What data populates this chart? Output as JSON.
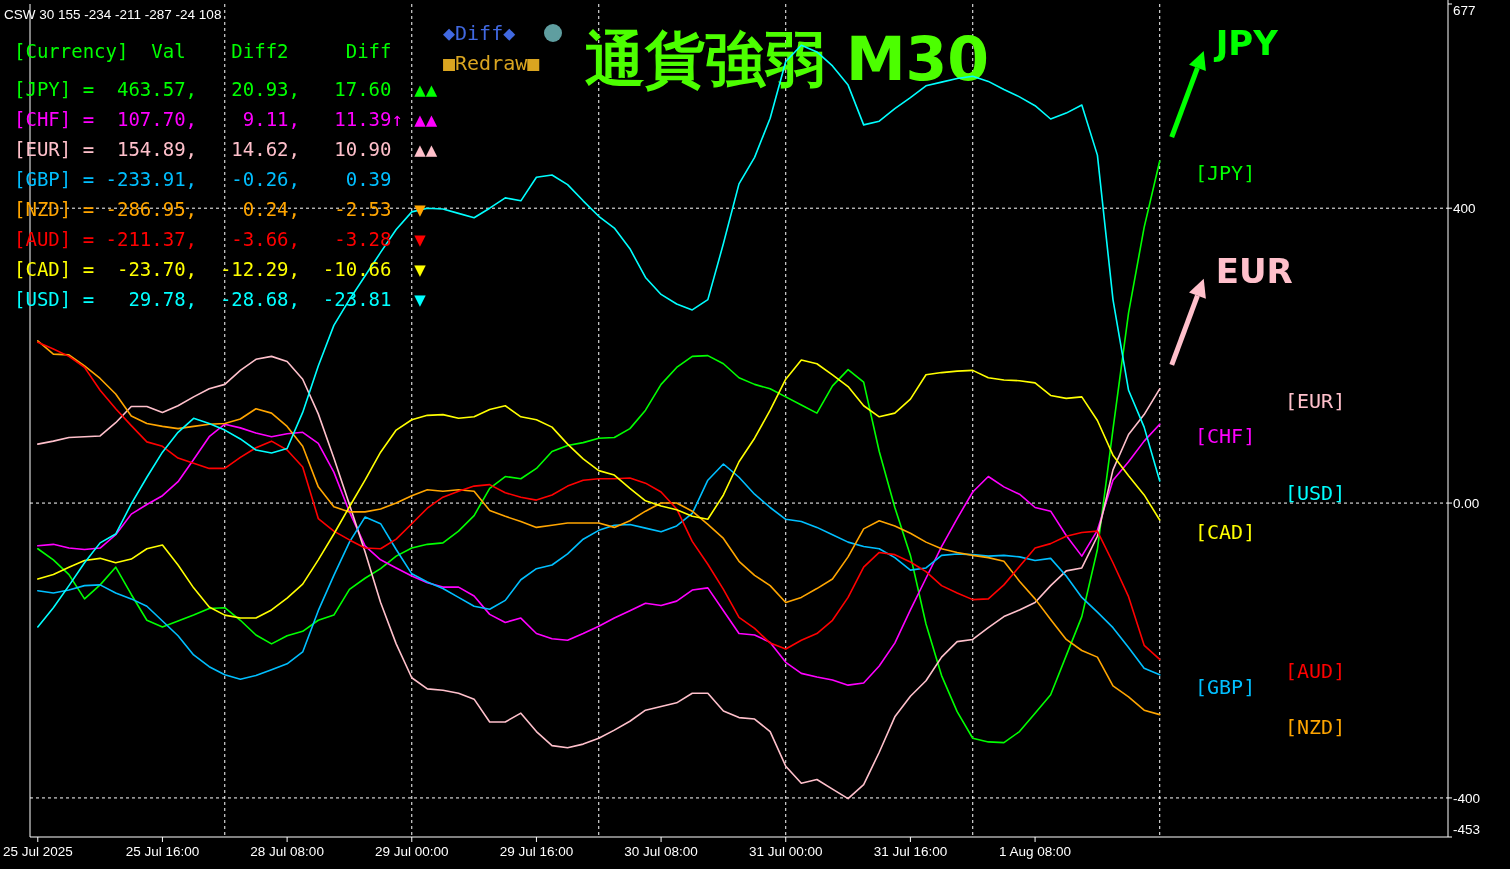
{
  "chart_data": {
    "type": "line",
    "title": "通貨強弱 M30",
    "annotations": [
      "CSW 30 155 -234 -211 -287 -24 108",
      "[Currency]  Val    Diff2     Diff",
      "[JPY] =  463.57,   20.93,   17.60  ▲▲",
      "[CHF] =  107.70,    9.11,   11.39↑ ▲▲",
      "[EUR] =  154.89,   14.62,   10.90  ▲▲",
      "[GBP] = -233.91,   -0.26,    0.39",
      "[NZD] = -286.95,    0.24,   -2.53  ▼",
      "[AUD] = -211.37,   -3.66,   -3.28  ▼",
      "[CAD] =  -23.70,  -12.29,  -10.66  ▼",
      "[USD] =   29.78,  -28.68,  -23.81  ▼",
      "◆Diff◆",
      "■Redraw■",
      "JPY",
      "EUR"
    ],
    "categories": [
      "25 Jul 2025",
      null,
      null,
      null,
      null,
      null,
      null,
      null,
      "25 Jul 16:00",
      null,
      null,
      null,
      null,
      null,
      null,
      null,
      "28 Jul 08:00",
      null,
      null,
      null,
      null,
      null,
      null,
      null,
      "29 Jul 00:00",
      null,
      null,
      null,
      null,
      null,
      null,
      null,
      "29 Jul 16:00",
      null,
      null,
      null,
      null,
      null,
      null,
      null,
      "30 Jul 08:00",
      null,
      null,
      null,
      null,
      null,
      null,
      null,
      "31 Jul 00:00",
      null,
      null,
      null,
      null,
      null,
      null,
      null,
      "31 Jul 16:00",
      null,
      null,
      null,
      null,
      null,
      null,
      null,
      "1 Aug 08:00",
      null,
      null,
      null,
      null,
      null,
      null,
      null,
      null,
      null,
      null,
      null,
      null,
      null,
      null,
      null,
      null,
      null,
      null,
      null,
      null,
      null,
      null,
      null,
      null,
      null,
      null
    ],
    "ylim": [
      -453,
      677
    ],
    "yticks": [
      677,
      400,
      {
        "value": 0,
        "label": "0.00"
      },
      -400,
      -453
    ],
    "grid": true,
    "series": [
      {
        "name": "[JPY]",
        "color": "#00ff00",
        "values": [
          -62,
          -77,
          -97,
          -130,
          -111,
          -87,
          -124,
          -159,
          -168,
          -160,
          -152,
          -143,
          -142,
          -159,
          -179,
          -191,
          -180,
          -174,
          -159,
          -152,
          -117,
          -102,
          -89,
          -72,
          -61,
          -56,
          -54,
          -38,
          -17,
          20,
          36,
          33,
          47,
          70,
          78,
          82,
          88,
          89,
          101,
          126,
          161,
          184,
          199,
          200,
          189,
          170,
          161,
          155,
          144,
          133,
          122,
          159,
          181,
          164,
          70,
          -6,
          -71,
          -164,
          -234,
          -283,
          -319,
          -324,
          -325,
          -310,
          -285,
          -260,
          -207,
          -154,
          -63,
          100,
          258,
          374,
          464,
          null,
          null,
          null,
          null,
          null,
          null,
          null,
          null,
          null,
          null,
          null,
          null,
          null,
          null,
          null,
          null,
          null,
          null
        ]
      },
      {
        "name": "[CHF]",
        "color": "#ff00ff",
        "values": [
          -58,
          -56,
          -61,
          -63,
          -61,
          -43,
          -15,
          -2,
          10,
          29,
          59,
          90,
          107,
          102,
          95,
          90,
          94,
          96,
          81,
          42,
          -12,
          -58,
          -77,
          -88,
          -99,
          -108,
          -114,
          -114,
          -126,
          -151,
          -162,
          -156,
          -177,
          -184,
          -186,
          -177,
          -167,
          -156,
          -146,
          -136,
          -139,
          -133,
          -118,
          -115,
          -146,
          -177,
          -179,
          -189,
          -216,
          -231,
          -236,
          -240,
          -247,
          -244,
          -221,
          -190,
          -145,
          -102,
          -59,
          -21,
          15,
          36,
          22,
          12,
          -6,
          -11,
          -44,
          -72,
          -37,
          31,
          56,
          84,
          107,
          null,
          null,
          null,
          null,
          null,
          null,
          null,
          null,
          null,
          null,
          null,
          null,
          null,
          null,
          null,
          null,
          null,
          null
        ]
      },
      {
        "name": "[EUR]",
        "color": "#ffc0cb",
        "values": [
          80,
          84,
          89,
          90,
          91,
          109,
          131,
          131,
          123,
          132,
          144,
          155,
          161,
          180,
          195,
          199,
          192,
          168,
          121,
          61,
          -2,
          -66,
          -135,
          -191,
          -237,
          -252,
          -254,
          -258,
          -266,
          -297,
          -297,
          -285,
          -310,
          -329,
          -332,
          -327,
          -319,
          -308,
          -296,
          -281,
          -276,
          -271,
          -258,
          -258,
          -282,
          -291,
          -293,
          -310,
          -357,
          -380,
          -375,
          -388,
          -401,
          -382,
          -338,
          -290,
          -262,
          -241,
          -209,
          -188,
          -185,
          -169,
          -154,
          -145,
          -135,
          -112,
          -92,
          -88,
          -45,
          45,
          93,
          120,
          155,
          null,
          null,
          null,
          null,
          null,
          null,
          null,
          null,
          null,
          null,
          null,
          null,
          null,
          null,
          null,
          null,
          null,
          null
        ]
      },
      {
        "name": "[GBP]",
        "color": "#00bfff",
        "values": [
          -119,
          -122,
          -118,
          -112,
          -111,
          -122,
          -130,
          -140,
          -160,
          -180,
          -206,
          -222,
          -233,
          -239,
          -234,
          -226,
          -218,
          -202,
          -146,
          -98,
          -53,
          -19,
          -28,
          -63,
          -96,
          -107,
          -116,
          -128,
          -140,
          -144,
          -132,
          -104,
          -89,
          -84,
          -69,
          -49,
          -37,
          -30,
          -29,
          -34,
          -39,
          -31,
          -14,
          31,
          53,
          35,
          12,
          -6,
          -22,
          -25,
          -33,
          -43,
          -53,
          -59,
          -62,
          -74,
          -91,
          -88,
          -71,
          -69,
          -70,
          -72,
          -71,
          -73,
          -78,
          -75,
          -99,
          -128,
          -148,
          -169,
          -196,
          -224,
          -233,
          null,
          null,
          null,
          null,
          null,
          null,
          null,
          null,
          null,
          null,
          null,
          null,
          null,
          null,
          null,
          null,
          null,
          null
        ]
      },
      {
        "name": "[NZD]",
        "color": "#ffa500",
        "values": [
          220,
          202,
          201,
          186,
          169,
          148,
          118,
          108,
          104,
          101,
          104,
          107,
          108,
          114,
          128,
          122,
          104,
          77,
          22,
          -5,
          -12,
          -12,
          -8,
          0,
          10,
          18,
          16,
          18,
          16,
          -10,
          -18,
          -25,
          -33,
          -30,
          -27,
          -27,
          -27,
          -33,
          -24,
          -11,
          0,
          0,
          -11,
          -29,
          -48,
          -79,
          -98,
          -112,
          -135,
          -128,
          -116,
          -103,
          -73,
          -35,
          -24,
          -31,
          -41,
          -53,
          -62,
          -67,
          -71,
          -74,
          -79,
          -106,
          -130,
          -158,
          -185,
          -200,
          -209,
          -248,
          -263,
          -281,
          -287,
          null,
          null,
          null,
          null,
          null,
          null,
          null,
          null,
          null,
          null,
          null,
          null,
          null,
          null,
          null,
          null,
          null,
          null
        ]
      },
      {
        "name": "[AUD]",
        "color": "#ff0000",
        "values": [
          218,
          209,
          199,
          184,
          153,
          128,
          105,
          83,
          77,
          61,
          54,
          47,
          47,
          62,
          75,
          84,
          72,
          49,
          -21,
          -38,
          -50,
          -61,
          -62,
          -49,
          -28,
          -7,
          8,
          16,
          23,
          25,
          14,
          8,
          4,
          11,
          23,
          31,
          33,
          33,
          34,
          27,
          15,
          -8,
          -52,
          -83,
          -117,
          -155,
          -170,
          -190,
          -198,
          -186,
          -177,
          -159,
          -128,
          -87,
          -67,
          -70,
          -80,
          -93,
          -112,
          -122,
          -131,
          -130,
          -111,
          -86,
          -61,
          -55,
          -45,
          -40,
          -38,
          -81,
          -127,
          -193,
          -212,
          null,
          null,
          null,
          null,
          null,
          null,
          null,
          null,
          null,
          null,
          null,
          null,
          null,
          null,
          null,
          null,
          null,
          null
        ]
      },
      {
        "name": "[CAD]",
        "color": "#ffff00",
        "values": [
          -103,
          -97,
          -87,
          -78,
          -75,
          -81,
          -76,
          -62,
          -57,
          -84,
          -115,
          -141,
          -152,
          -156,
          -156,
          -145,
          -129,
          -110,
          -77,
          -42,
          -5,
          31,
          69,
          99,
          113,
          119,
          120,
          115,
          117,
          127,
          132,
          117,
          113,
          103,
          80,
          60,
          44,
          38,
          20,
          3,
          -4,
          -9,
          -18,
          -22,
          11,
          56,
          88,
          126,
          168,
          194,
          189,
          174,
          158,
          132,
          117,
          122,
          141,
          174,
          177,
          179,
          180,
          170,
          167,
          166,
          163,
          146,
          142,
          144,
          112,
          65,
          37,
          11,
          -23,
          null,
          null,
          null,
          null,
          null,
          null,
          null,
          null,
          null,
          null,
          null,
          null,
          null,
          null,
          null,
          null,
          null,
          null
        ]
      },
      {
        "name": "[USD]",
        "color": "#00ffff",
        "values": [
          -168,
          -142,
          -112,
          -81,
          -54,
          -42,
          -1,
          35,
          69,
          96,
          115,
          108,
          99,
          87,
          72,
          68,
          74,
          123,
          186,
          241,
          276,
          308,
          340,
          371,
          395,
          400,
          399,
          393,
          387,
          400,
          414,
          410,
          442,
          445,
          432,
          410,
          389,
          373,
          345,
          306,
          283,
          270,
          262,
          276,
          352,
          433,
          469,
          522,
          599,
          621,
          612,
          593,
          567,
          513,
          518,
          535,
          550,
          566,
          571,
          576,
          579,
          572,
          561,
          551,
          539,
          521,
          529,
          540,
          472,
          276,
          153,
          103,
          30,
          null,
          null,
          null,
          null,
          null,
          null,
          null,
          null,
          null,
          null,
          null,
          null,
          null,
          null,
          null,
          null,
          null,
          null
        ]
      }
    ]
  }
}
